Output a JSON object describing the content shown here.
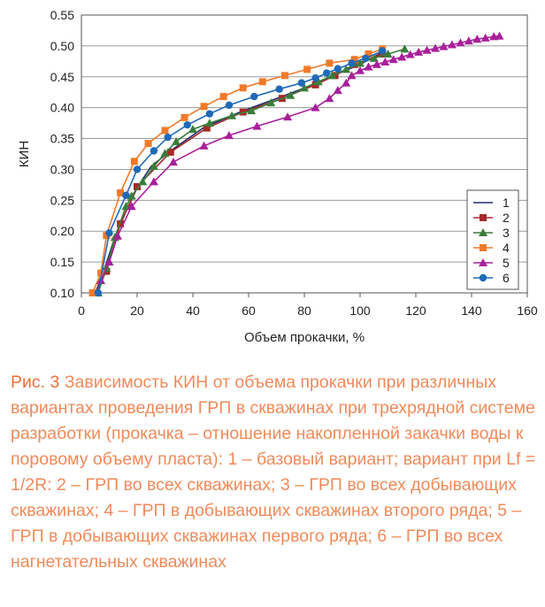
{
  "chart_data": {
    "type": "line",
    "title": "",
    "xlabel": "Объем прокачки, %",
    "ylabel": "КИН",
    "xlim": [
      0,
      160
    ],
    "ylim": [
      0.1,
      0.55
    ],
    "xticks": [
      "0",
      "20",
      "40",
      "60",
      "80",
      "100",
      "120",
      "140",
      "160"
    ],
    "yticks": [
      "0.10",
      "0.15",
      "0.20",
      "0.25",
      "0.30",
      "0.35",
      "0.40",
      "0.45",
      "0.50",
      "0.55"
    ],
    "legend_position": "right",
    "series": [
      {
        "name": "1",
        "color": "#1f2a6b",
        "marker": "none",
        "x": [
          5,
          8,
          12,
          16,
          20,
          25,
          32,
          44,
          58,
          72,
          83,
          92,
          100,
          108
        ],
        "y": [
          0.1,
          0.135,
          0.19,
          0.232,
          0.27,
          0.305,
          0.33,
          0.368,
          0.395,
          0.418,
          0.437,
          0.455,
          0.47,
          0.49
        ]
      },
      {
        "name": "2",
        "color": "#a52a2a",
        "marker": "square",
        "x": [
          5,
          9,
          14,
          20,
          32,
          45,
          58,
          72,
          84,
          91,
          98,
          108
        ],
        "y": [
          0.1,
          0.135,
          0.212,
          0.272,
          0.328,
          0.367,
          0.393,
          0.415,
          0.437,
          0.452,
          0.47,
          0.487
        ]
      },
      {
        "name": "3",
        "color": "#3a7d3a",
        "marker": "triangle",
        "x": [
          6,
          9,
          12,
          16,
          18,
          22,
          26,
          30,
          34,
          40,
          46,
          54,
          61,
          68,
          75,
          80,
          85,
          90,
          95,
          100,
          105,
          110,
          116
        ],
        "y": [
          0.1,
          0.14,
          0.19,
          0.24,
          0.257,
          0.28,
          0.305,
          0.326,
          0.345,
          0.365,
          0.375,
          0.387,
          0.395,
          0.408,
          0.42,
          0.432,
          0.442,
          0.452,
          0.462,
          0.472,
          0.48,
          0.487,
          0.495
        ]
      },
      {
        "name": "4",
        "color": "#f07a2a",
        "marker": "square",
        "x": [
          4,
          7,
          9,
          14,
          19,
          24,
          30,
          37,
          44,
          51,
          58,
          65,
          73,
          81,
          89,
          98,
          103,
          108
        ],
        "y": [
          0.1,
          0.132,
          0.193,
          0.262,
          0.313,
          0.342,
          0.363,
          0.384,
          0.402,
          0.418,
          0.432,
          0.442,
          0.452,
          0.462,
          0.472,
          0.478,
          0.487,
          0.495
        ]
      },
      {
        "name": "5",
        "color": "#a8209a",
        "marker": "triangle",
        "x": [
          7,
          10,
          13,
          18,
          26,
          33,
          44,
          53,
          63,
          74,
          84,
          89,
          92,
          95,
          97,
          100,
          103,
          106,
          109,
          112,
          115,
          118,
          121,
          124,
          127,
          130,
          133,
          136,
          139,
          142,
          145,
          148,
          150
        ],
        "y": [
          0.12,
          0.15,
          0.192,
          0.24,
          0.28,
          0.312,
          0.338,
          0.355,
          0.37,
          0.385,
          0.4,
          0.415,
          0.428,
          0.44,
          0.452,
          0.46,
          0.466,
          0.47,
          0.474,
          0.478,
          0.482,
          0.486,
          0.49,
          0.493,
          0.496,
          0.499,
          0.502,
          0.505,
          0.508,
          0.511,
          0.513,
          0.515,
          0.516
        ]
      },
      {
        "name": "6",
        "color": "#1f6ab8",
        "marker": "circle",
        "x": [
          6,
          10,
          16,
          20,
          26,
          31,
          38,
          46,
          53,
          62,
          71,
          79,
          84,
          88,
          92,
          97,
          102,
          108
        ],
        "y": [
          0.1,
          0.197,
          0.258,
          0.3,
          0.33,
          0.352,
          0.372,
          0.39,
          0.404,
          0.418,
          0.43,
          0.44,
          0.448,
          0.456,
          0.463,
          0.472,
          0.48,
          0.492
        ]
      }
    ]
  },
  "caption": {
    "lead": "Рис. 3",
    "text": " Зависимость КИН от объема прокачки при различных вариантах проведения ГРП в скважинах при трехрядной системе разработки (прокачка – отношение накопленной закачки воды к поровому объему пласта): 1 – базовый вариант; вариант при Lf = 1/2R: 2 – ГРП во всех скважинах; 3 – ГРП во всех добывающих скважинах; 4 – ГРП в добывающих скважинах второго ряда; 5 – ГРП в добывающих скважинах первого ряда; 6 – ГРП во всех нагнетательных скважинах"
  }
}
